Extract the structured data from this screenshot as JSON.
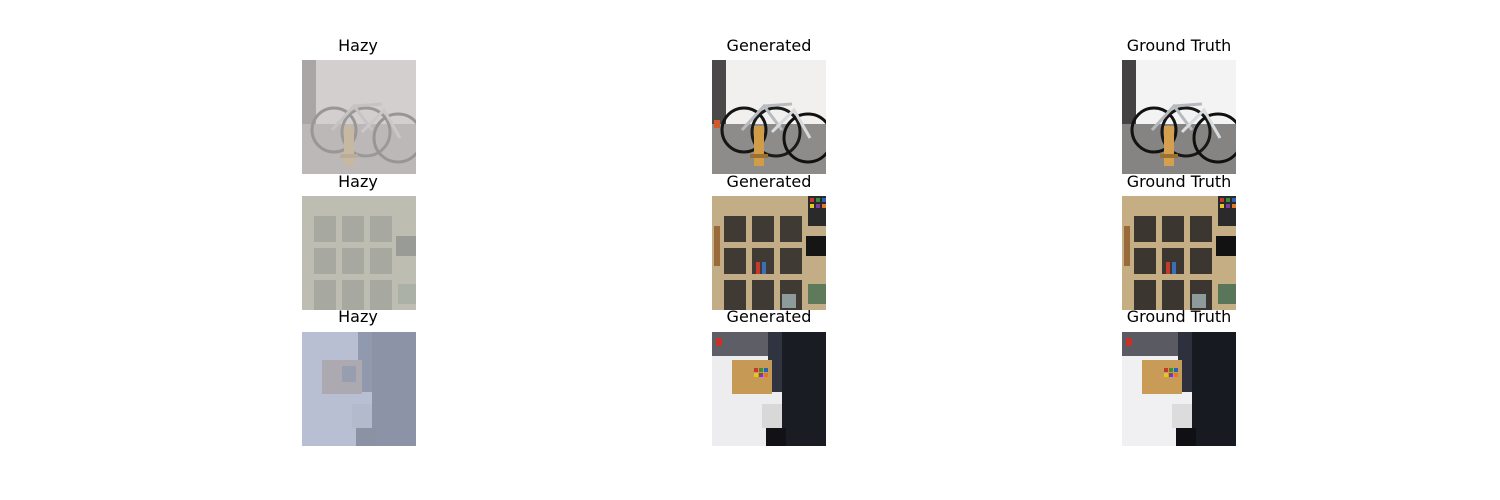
{
  "columns": [
    "Hazy",
    "Generated",
    "Ground Truth"
  ],
  "rows": [
    {
      "scene": "bicycles",
      "cells": [
        {
          "title": "Hazy",
          "variant": "hazy",
          "haze_color": "#c7c4c3"
        },
        {
          "title": "Generated",
          "variant": "clear"
        },
        {
          "title": "Ground Truth",
          "variant": "clear"
        }
      ]
    },
    {
      "scene": "bookshelf",
      "cells": [
        {
          "title": "Hazy",
          "variant": "hazy",
          "haze_color": "#c0c4bd"
        },
        {
          "title": "Generated",
          "variant": "clear"
        },
        {
          "title": "Ground Truth",
          "variant": "clear"
        }
      ]
    },
    {
      "scene": "desk",
      "cells": [
        {
          "title": "Hazy",
          "variant": "hazy",
          "haze_color": "#aab3cb"
        },
        {
          "title": "Generated",
          "variant": "clear"
        },
        {
          "title": "Ground Truth",
          "variant": "clear"
        }
      ]
    }
  ]
}
